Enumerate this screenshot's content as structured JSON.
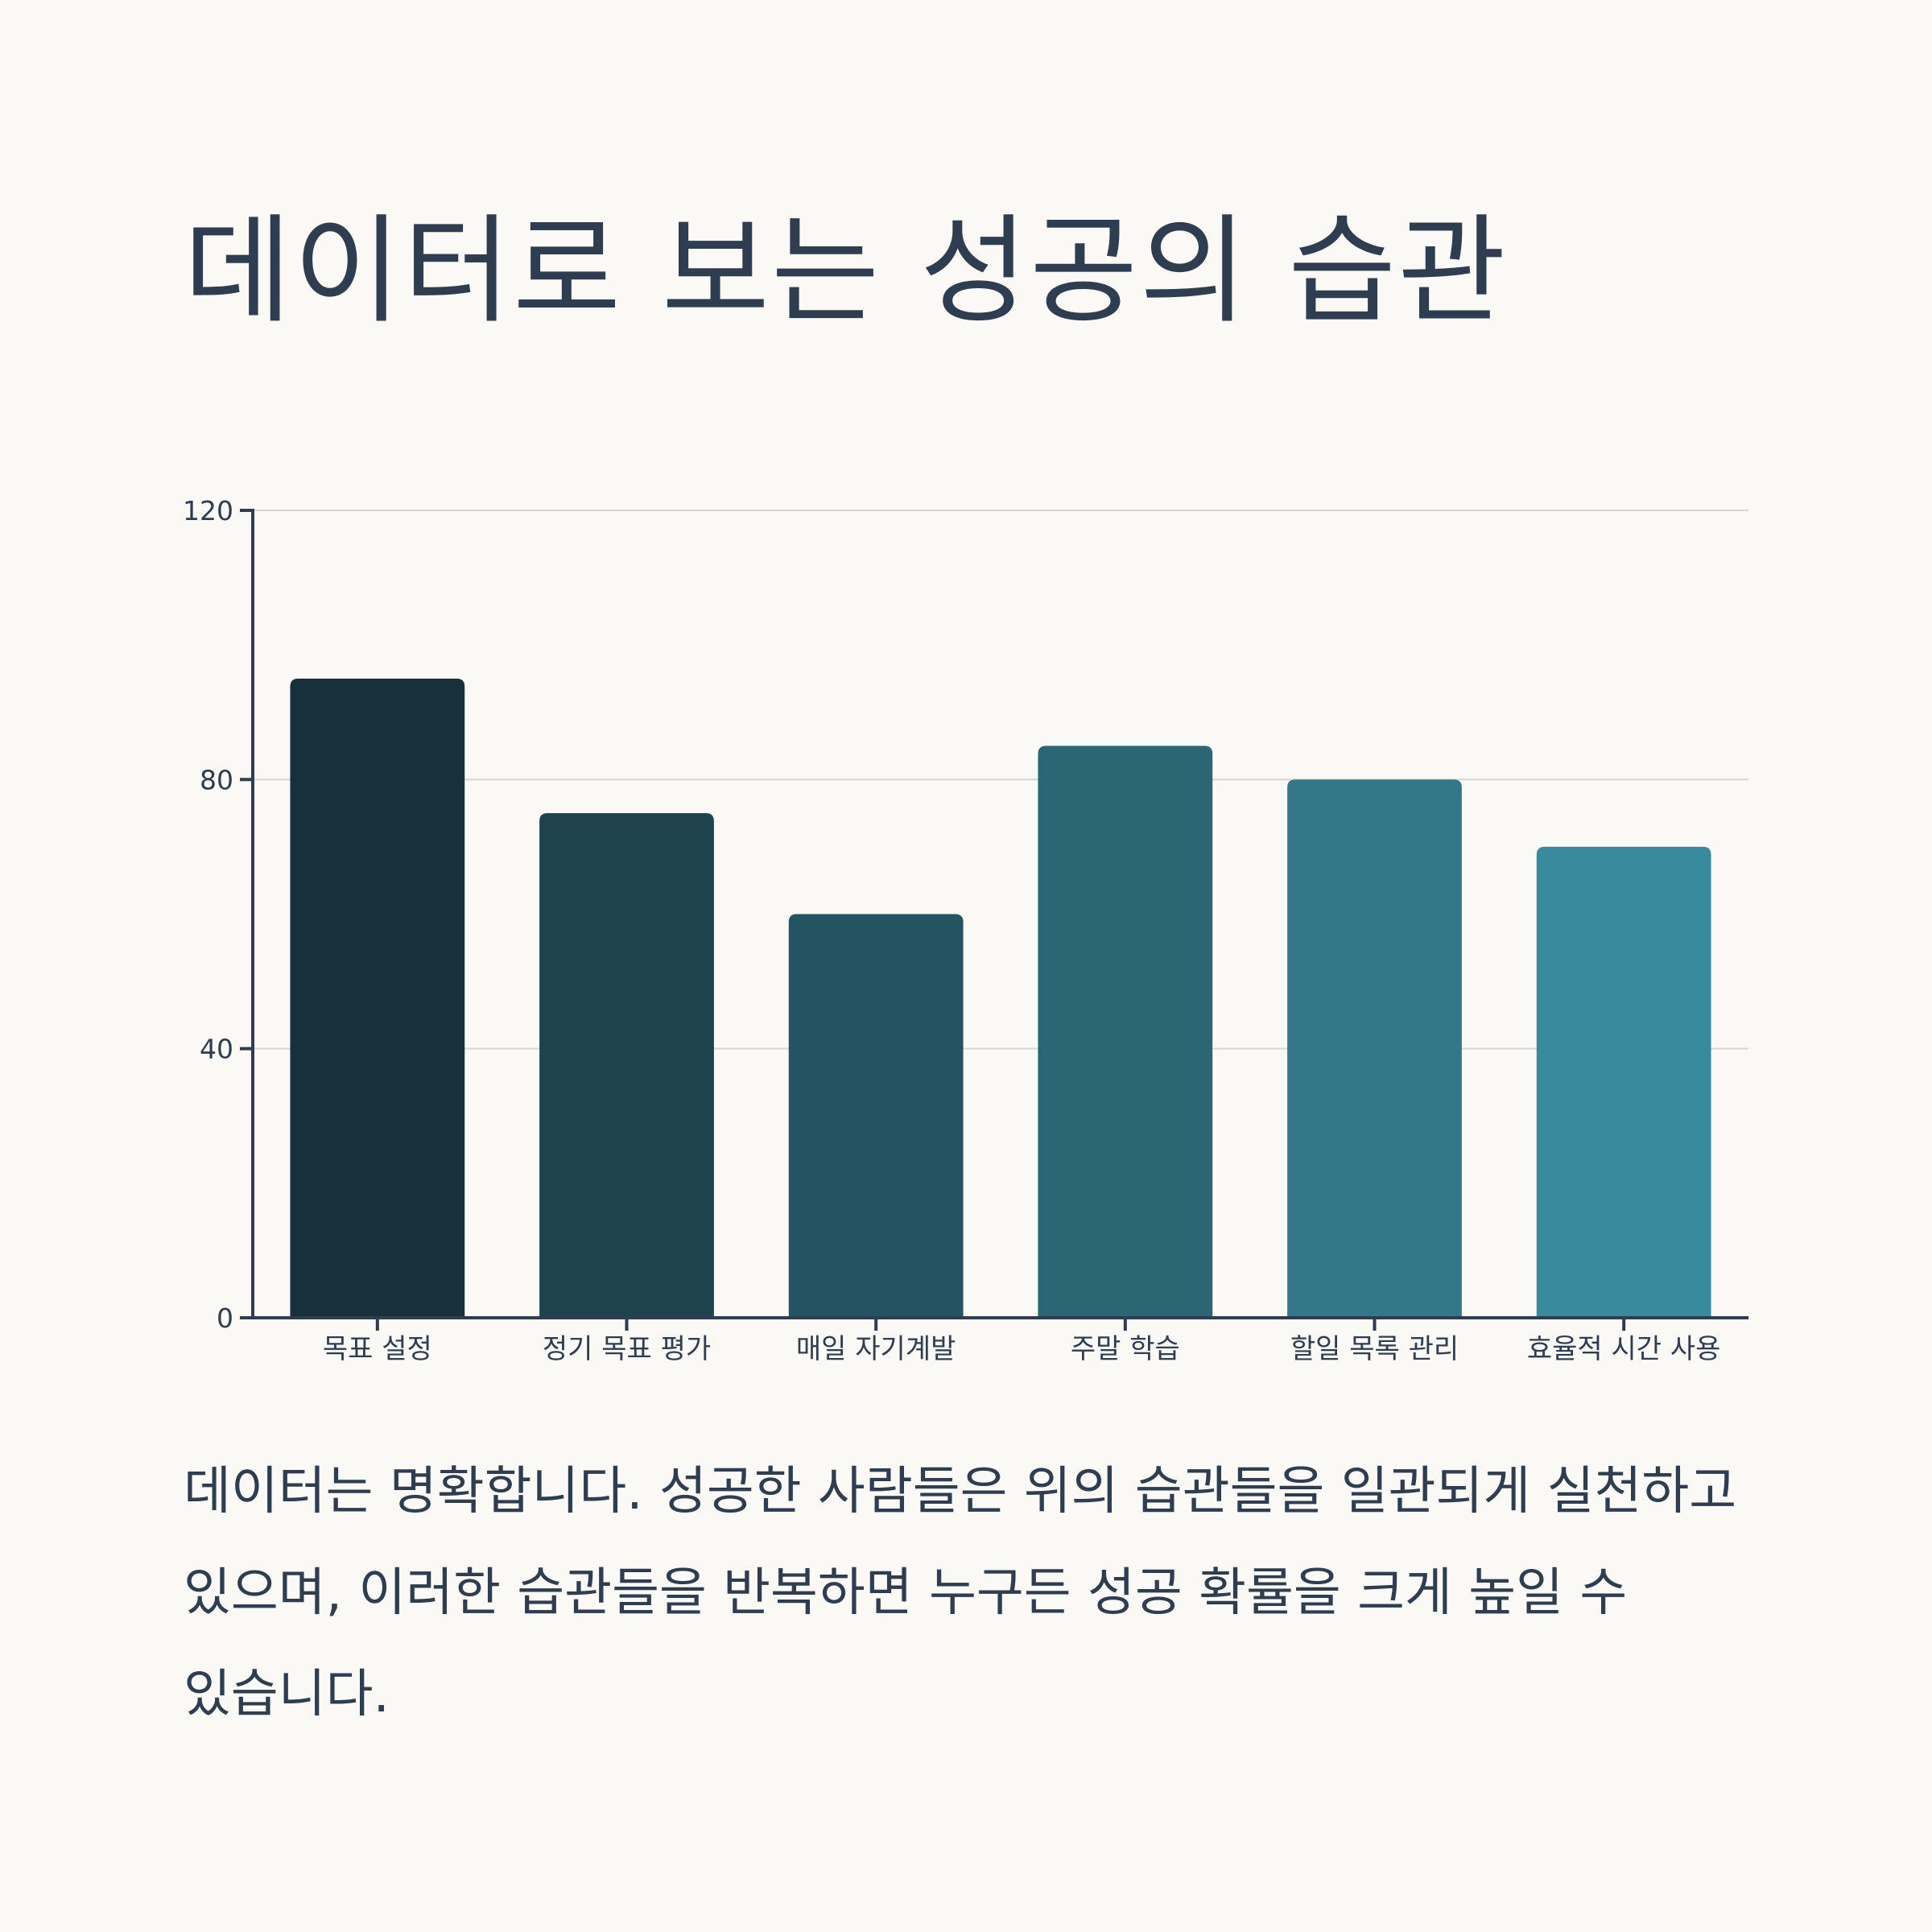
{
  "title": "데이터로 보는 성공의 습관",
  "caption": "데이터는 명확합니다. 성공한 사람들은 위의 습관들을 일관되게 실천하고 있으며, 이러한 습관들을 반복하면 누구든 성공 확률을 크게 높일 수 있습니다.",
  "chart_data": {
    "type": "bar",
    "categories": [
      "목표 설정",
      "정기 목표 평가",
      "매일 자기계발",
      "주말 학습",
      "할일 목록 관리",
      "효율적 시간 사용"
    ],
    "values": [
      95,
      75,
      60,
      85,
      80,
      70
    ],
    "colors": [
      "#173039",
      "#1e424e",
      "#245462",
      "#2b6675",
      "#327889",
      "#388a9d"
    ],
    "ylim": [
      0,
      120
    ],
    "yticks": [
      0,
      40,
      80,
      120
    ],
    "grid": true,
    "title": "",
    "xlabel": "",
    "ylabel": ""
  }
}
